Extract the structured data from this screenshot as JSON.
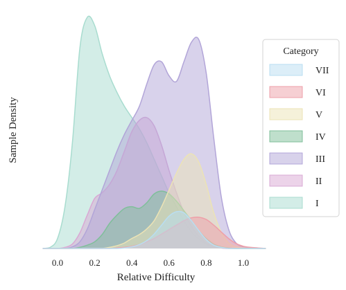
{
  "chart_data": {
    "type": "area",
    "subtype": "kde-density",
    "xlabel": "Relative Difficulty",
    "ylabel": "Sample Density",
    "xlim": [
      -0.08,
      1.14
    ],
    "x_ticks": [
      "0.0",
      "0.2",
      "0.4",
      "0.6",
      "0.8",
      "1.0"
    ],
    "y_ticks_visible": false,
    "grid": false,
    "legend": {
      "title": "Category",
      "placement": "right",
      "entries": [
        "VII",
        "VI",
        "V",
        "IV",
        "III",
        "II",
        "I"
      ]
    },
    "x": [
      -0.08,
      -0.04,
      0.0,
      0.04,
      0.08,
      0.12,
      0.16,
      0.2,
      0.24,
      0.28,
      0.32,
      0.36,
      0.4,
      0.44,
      0.48,
      0.52,
      0.56,
      0.6,
      0.64,
      0.68,
      0.72,
      0.76,
      0.8,
      0.84,
      0.88,
      0.92,
      0.96,
      1.0,
      1.04,
      1.08,
      1.12
    ],
    "series": [
      {
        "name": "I",
        "color": "#a8dccf",
        "values": [
          0.0,
          0.02,
          0.18,
          0.75,
          1.9,
          3.6,
          4.15,
          4.0,
          3.5,
          3.1,
          2.8,
          2.55,
          2.35,
          2.15,
          1.9,
          1.6,
          1.3,
          1.0,
          0.75,
          0.5,
          0.3,
          0.17,
          0.08,
          0.03,
          0.01,
          0.0,
          0.0,
          0.0,
          0.0,
          0.0,
          0.0
        ]
      },
      {
        "name": "II",
        "color": "#d9a8d4",
        "values": [
          0.0,
          0.0,
          0.0,
          0.02,
          0.08,
          0.28,
          0.6,
          0.9,
          1.0,
          1.15,
          1.4,
          1.75,
          2.1,
          2.3,
          2.35,
          2.2,
          1.85,
          1.4,
          1.0,
          0.65,
          0.4,
          0.22,
          0.1,
          0.04,
          0.01,
          0.0,
          0.0,
          0.0,
          0.0,
          0.0,
          0.0
        ]
      },
      {
        "name": "III",
        "color": "#b2a5d8",
        "values": [
          0.0,
          0.0,
          0.0,
          0.0,
          0.03,
          0.12,
          0.35,
          0.7,
          1.05,
          1.4,
          1.75,
          2.05,
          2.3,
          2.55,
          2.95,
          3.3,
          3.35,
          3.1,
          3.0,
          3.35,
          3.7,
          3.75,
          3.15,
          2.0,
          0.95,
          0.35,
          0.1,
          0.03,
          0.01,
          0.0,
          0.0
        ]
      },
      {
        "name": "IV",
        "color": "#7fbf9a",
        "values": [
          0.0,
          0.0,
          0.0,
          0.0,
          0.0,
          0.02,
          0.06,
          0.12,
          0.25,
          0.45,
          0.6,
          0.72,
          0.75,
          0.72,
          0.82,
          0.98,
          1.03,
          0.98,
          0.85,
          0.68,
          0.5,
          0.32,
          0.18,
          0.08,
          0.03,
          0.01,
          0.0,
          0.0,
          0.0,
          0.0,
          0.0
        ]
      },
      {
        "name": "V",
        "color": "#ece3b5",
        "values": [
          0.0,
          0.0,
          0.0,
          0.0,
          0.0,
          0.0,
          0.0,
          0.0,
          0.0,
          0.02,
          0.05,
          0.1,
          0.18,
          0.25,
          0.35,
          0.5,
          0.75,
          1.05,
          1.35,
          1.6,
          1.7,
          1.55,
          1.15,
          0.65,
          0.3,
          0.1,
          0.03,
          0.01,
          0.0,
          0.0,
          0.0
        ]
      },
      {
        "name": "VI",
        "color": "#ee9fa8",
        "values": [
          0.0,
          0.0,
          0.0,
          0.0,
          0.0,
          0.0,
          0.0,
          0.0,
          0.0,
          0.0,
          0.01,
          0.02,
          0.04,
          0.07,
          0.12,
          0.18,
          0.26,
          0.34,
          0.42,
          0.5,
          0.55,
          0.56,
          0.52,
          0.42,
          0.3,
          0.18,
          0.09,
          0.04,
          0.02,
          0.01,
          0.0
        ]
      },
      {
        "name": "VII",
        "color": "#b9def2",
        "values": [
          0.0,
          0.0,
          0.0,
          0.0,
          0.0,
          0.0,
          0.0,
          0.0,
          0.0,
          0.0,
          0.0,
          0.01,
          0.03,
          0.07,
          0.14,
          0.26,
          0.42,
          0.58,
          0.66,
          0.64,
          0.5,
          0.32,
          0.16,
          0.06,
          0.02,
          0.0,
          0.0,
          0.0,
          0.0,
          0.0,
          0.0
        ]
      }
    ]
  }
}
